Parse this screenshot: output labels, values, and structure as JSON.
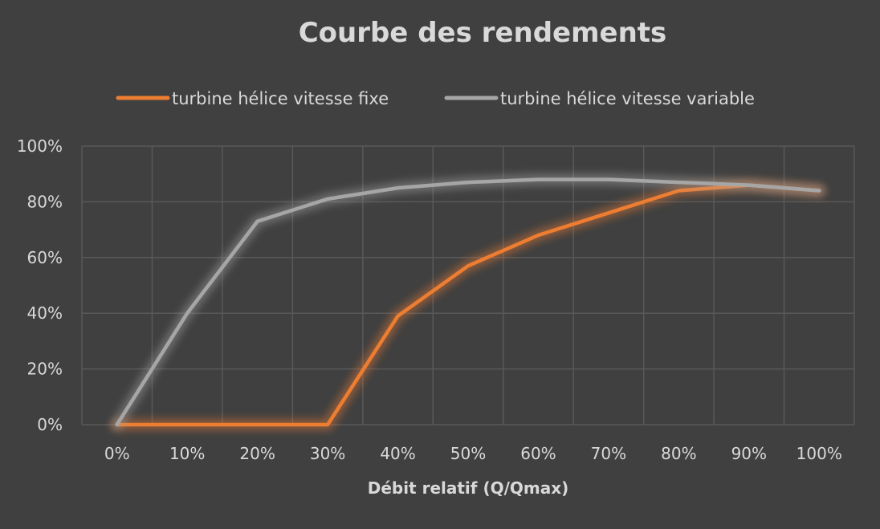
{
  "chart_data": {
    "type": "line",
    "title": "Courbe des rendements",
    "xlabel": "Débit relatif (Q/Qmax)",
    "ylabel": "",
    "categories": [
      "0%",
      "10%",
      "20%",
      "30%",
      "40%",
      "50%",
      "60%",
      "70%",
      "80%",
      "90%",
      "100%"
    ],
    "x": [
      0,
      10,
      20,
      30,
      40,
      50,
      60,
      70,
      80,
      90,
      100
    ],
    "ylim": [
      0,
      100
    ],
    "yticks": [
      "0%",
      "20%",
      "40%",
      "60%",
      "80%",
      "100%"
    ],
    "grid": true,
    "legend_position": "top",
    "series": [
      {
        "name": "turbine hélice vitesse fixe",
        "color": "#ed7d31",
        "values": [
          0,
          0,
          0,
          0,
          39,
          57,
          68,
          76,
          84,
          86,
          84
        ]
      },
      {
        "name": "turbine hélice vitesse variable",
        "color": "#a6a6a6",
        "values": [
          0,
          40,
          73,
          81,
          85,
          87,
          88,
          88,
          87,
          86,
          84
        ]
      }
    ]
  }
}
